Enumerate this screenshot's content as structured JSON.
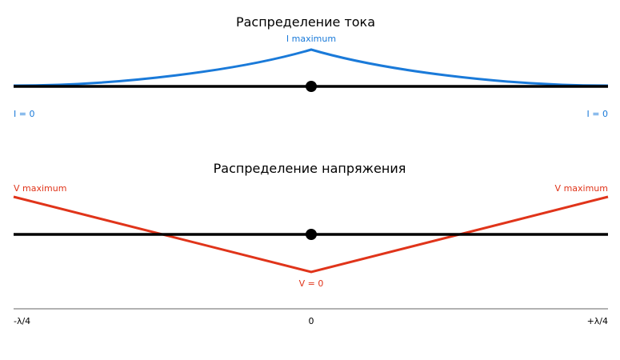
{
  "current": {
    "title": "Распределение тока",
    "peak_label": "I maximum",
    "left_label": "I = 0",
    "right_label": "I = 0"
  },
  "voltage": {
    "title": "Распределение напряжения",
    "left_label": "V maximum",
    "right_label": "V maximum",
    "min_label": "V = 0"
  },
  "axis": {
    "labels": [
      "-λ/4",
      "0",
      "+λ/4"
    ]
  }
}
